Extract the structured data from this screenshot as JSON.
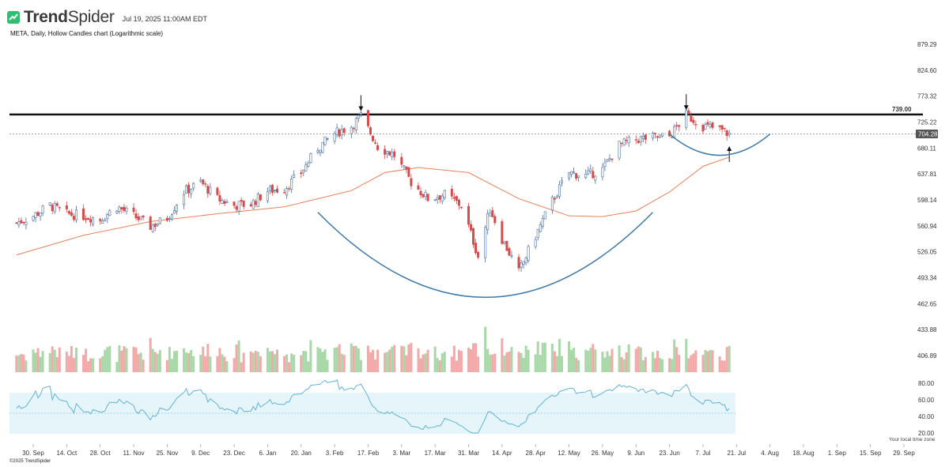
{
  "header": {
    "brand_bold": "Trend",
    "brand_light": "Spider",
    "date": "Jul 19, 2025 11:00AM EDT",
    "subtitle": "META, Daily, Hollow Candles chart (Logarithmic scale)"
  },
  "footer": {
    "copyright": "©2025 TrendSpider",
    "timezone_note": "Your local time zone"
  },
  "colors": {
    "up": "#4a6fa5",
    "down": "#d94a4a",
    "sma": "#e8825a",
    "arc": "#3d78a8",
    "rsi": "#5fb3dc",
    "rsi_band": "#e6f5fa",
    "volume_up": "#a8d8a8",
    "volume_down": "#f4a9a9"
  },
  "chart_data": {
    "type": "candlestick",
    "symbol": "META",
    "interval": "Daily",
    "scale": "logarithmic",
    "y_axis_ticks": [
      "879.29",
      "824.60",
      "773.32",
      "725.22",
      "680.11",
      "637.81",
      "598.14",
      "560.94",
      "526.05",
      "493.34",
      "462.65",
      "433.88",
      "406.89"
    ],
    "rsi_ticks": [
      "80.00",
      "60.00",
      "40.00",
      "20.00"
    ],
    "x_axis_labels": [
      "30. Sep",
      "14. Oct",
      "28. Oct",
      "11. Nov",
      "25. Nov",
      "9. Dec",
      "23. Dec",
      "6. Jan",
      "20. Jan",
      "3. Feb",
      "17. Feb",
      "3. Mar",
      "17. Mar",
      "31. Mar",
      "14. Apr",
      "28. Apr",
      "12. May",
      "26. May",
      "9. Jun",
      "23. Jun",
      "7. Jul",
      "21. Jul",
      "4. Aug",
      "18. Aug",
      "1. Sep",
      "15. Sep",
      "29. Sep"
    ],
    "resistance_level": 739.0,
    "resistance_label": "739.00",
    "last_price": 704.28,
    "last_price_label": "704.28",
    "close_path": [
      [
        "2024-09-23",
        565
      ],
      [
        "2024-09-30",
        575
      ],
      [
        "2024-10-07",
        590
      ],
      [
        "2024-10-14",
        578
      ],
      [
        "2024-10-21",
        575
      ],
      [
        "2024-10-28",
        570
      ],
      [
        "2024-11-04",
        588
      ],
      [
        "2024-11-11",
        575
      ],
      [
        "2024-11-18",
        560
      ],
      [
        "2024-11-25",
        572
      ],
      [
        "2024-12-02",
        610
      ],
      [
        "2024-12-09",
        625
      ],
      [
        "2024-12-16",
        600
      ],
      [
        "2024-12-23",
        590
      ],
      [
        "2024-12-30",
        592
      ],
      [
        "2025-01-06",
        612
      ],
      [
        "2025-01-13",
        615
      ],
      [
        "2025-01-20",
        640
      ],
      [
        "2025-01-27",
        680
      ],
      [
        "2025-02-03",
        705
      ],
      [
        "2025-02-10",
        718
      ],
      [
        "2025-02-14",
        736
      ],
      [
        "2025-02-21",
        683
      ],
      [
        "2025-02-28",
        668
      ],
      [
        "2025-03-07",
        625
      ],
      [
        "2025-03-14",
        600
      ],
      [
        "2025-03-21",
        606
      ],
      [
        "2025-03-28",
        590
      ],
      [
        "2025-04-04",
        520
      ],
      [
        "2025-04-09",
        585
      ],
      [
        "2025-04-14",
        543
      ],
      [
        "2025-04-21",
        500
      ],
      [
        "2025-04-28",
        547
      ],
      [
        "2025-05-05",
        597
      ],
      [
        "2025-05-12",
        640
      ],
      [
        "2025-05-19",
        635
      ],
      [
        "2025-05-26",
        645
      ],
      [
        "2025-06-02",
        685
      ],
      [
        "2025-06-09",
        695
      ],
      [
        "2025-06-16",
        698
      ],
      [
        "2025-06-23",
        700
      ],
      [
        "2025-06-30",
        738
      ],
      [
        "2025-07-07",
        718
      ],
      [
        "2025-07-14",
        712
      ],
      [
        "2025-07-18",
        704
      ]
    ],
    "sma_path": [
      [
        "2024-09-23",
        522
      ],
      [
        "2024-10-21",
        548
      ],
      [
        "2024-11-18",
        567
      ],
      [
        "2024-12-16",
        578
      ],
      [
        "2025-01-13",
        588
      ],
      [
        "2025-02-10",
        612
      ],
      [
        "2025-02-24",
        640
      ],
      [
        "2025-03-10",
        648
      ],
      [
        "2025-03-31",
        640
      ],
      [
        "2025-04-21",
        600
      ],
      [
        "2025-05-12",
        575
      ],
      [
        "2025-05-26",
        574
      ],
      [
        "2025-06-09",
        582
      ],
      [
        "2025-06-23",
        610
      ],
      [
        "2025-07-07",
        650
      ],
      [
        "2025-07-18",
        665
      ]
    ],
    "annotations": [
      {
        "type": "arrow-down",
        "date": "2025-02-14",
        "price": 760
      },
      {
        "type": "arrow-down",
        "date": "2025-06-30",
        "price": 762
      },
      {
        "type": "arrow-up",
        "date": "2025-07-18",
        "price": 670
      },
      {
        "type": "rounding-bottom-arc",
        "from": "2025-01-27",
        "to": "2025-06-16",
        "low": 470
      },
      {
        "type": "cup-arc",
        "from": "2025-06-23",
        "to": "2025-08-04",
        "low": 668
      }
    ]
  }
}
